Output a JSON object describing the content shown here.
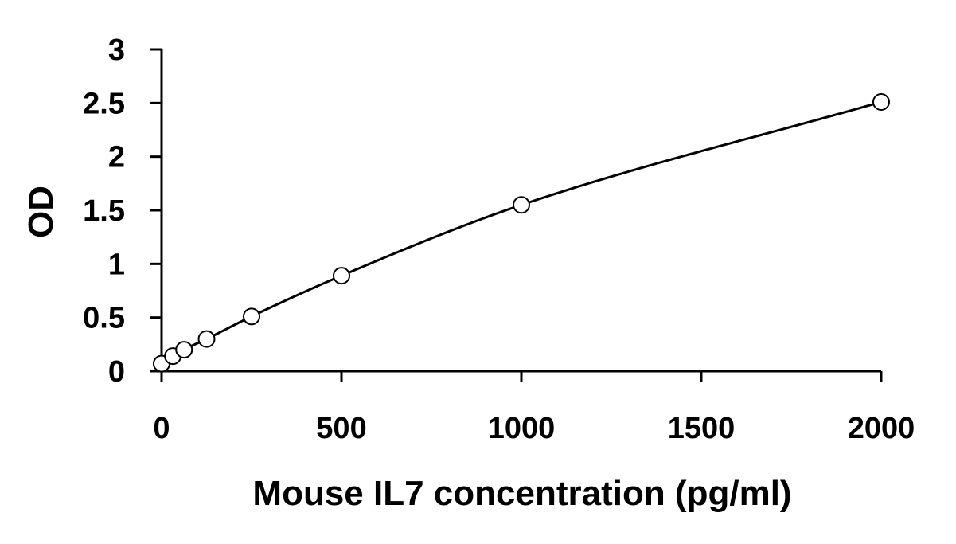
{
  "chart_data": {
    "type": "scatter",
    "title": "",
    "xlabel": "Mouse IL7 concentration (pg/ml)",
    "ylabel": "OD",
    "xlim": [
      0,
      2000
    ],
    "ylim": [
      0,
      3
    ],
    "x_ticks": [
      0,
      500,
      1000,
      1500,
      2000
    ],
    "y_ticks": [
      0,
      0.5,
      1,
      1.5,
      2,
      2.5,
      3
    ],
    "x_tick_labels": [
      "0",
      "500",
      "1000",
      "1500",
      "2000"
    ],
    "y_tick_labels": [
      "0",
      "0.5",
      "1",
      "1.5",
      "2",
      "2.5",
      "3"
    ],
    "grid": false,
    "legend": "none",
    "series": [
      {
        "x": [
          0,
          31.25,
          62.5,
          125,
          250,
          500,
          1000,
          2000
        ],
        "y": [
          0.07,
          0.14,
          0.2,
          0.3,
          0.51,
          0.89,
          1.55,
          2.51
        ],
        "marker": "open-circle",
        "color": "#000000"
      }
    ],
    "fit_curve": {
      "kind": "smooth fit line",
      "color": "#000000"
    }
  }
}
